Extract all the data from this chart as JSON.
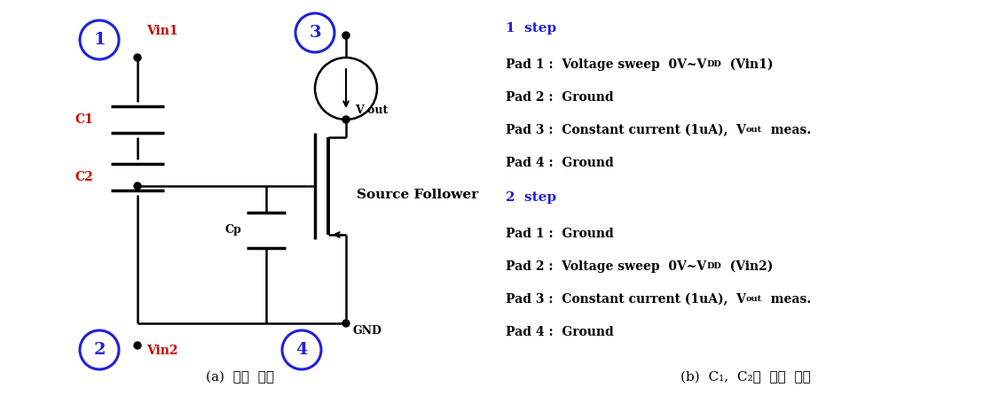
{
  "title_a": "(a)  회로  구성",
  "title_b": "(b)  C₁,  C₂의  동작  원리",
  "line_color": "black",
  "blue_color": "#2020dd",
  "red_color": "#cc0000",
  "bg_color": "white",
  "step1_title": "1  step",
  "step2_title": "2  step"
}
